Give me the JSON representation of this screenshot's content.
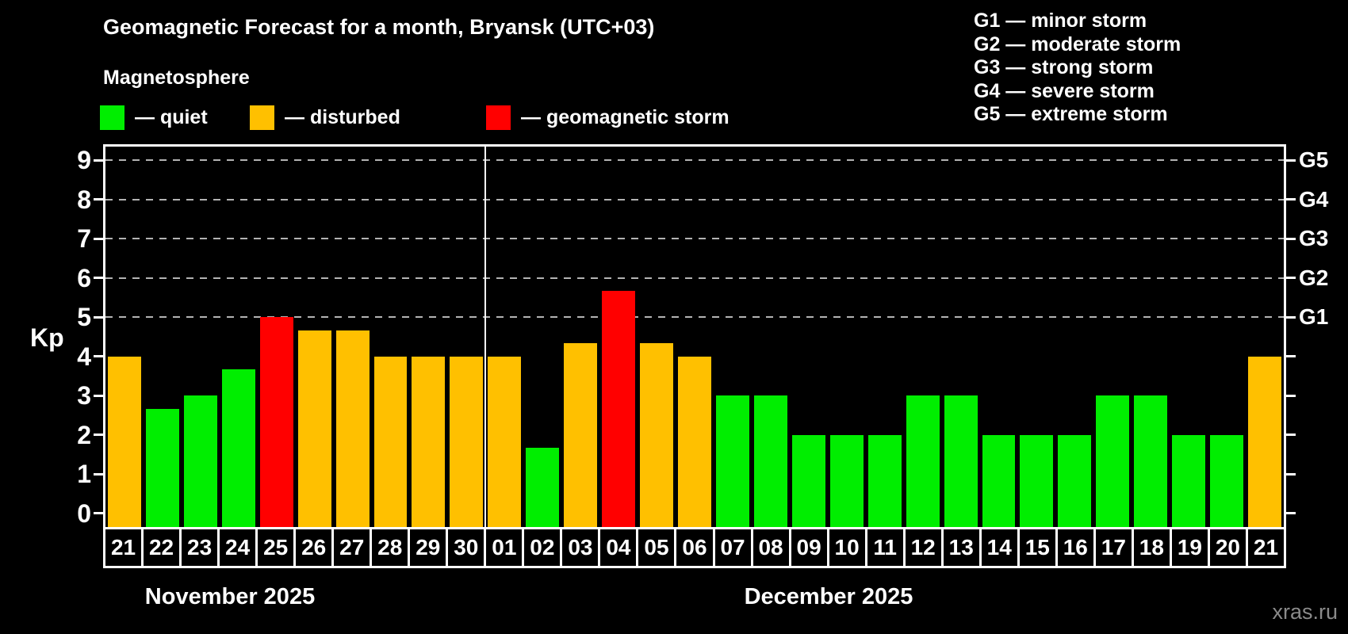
{
  "header": {
    "title": "Geomagnetic Forecast for a month, Bryansk (UTC+03)",
    "subtitle": "Magnetosphere"
  },
  "legend": {
    "items": [
      {
        "status": "quiet",
        "color": "#00ee00",
        "label": "— quiet"
      },
      {
        "status": "disturbed",
        "color": "#ffc000",
        "label": "— disturbed"
      },
      {
        "status": "storm",
        "color": "#ff0000",
        "label": "— geomagnetic storm"
      }
    ]
  },
  "g_legend": {
    "lines": [
      "G1 — minor storm",
      "G2 — moderate storm",
      "G3 — strong storm",
      "G4 — severe storm",
      "G5 — extreme storm"
    ]
  },
  "watermark": "xras.ru",
  "chart_data": {
    "type": "bar",
    "title": "Geomagnetic Forecast for a month, Bryansk (UTC+03)",
    "subtitle": "Magnetosphere",
    "ylabel": "Kp",
    "ylim": [
      -0.35,
      9.35
    ],
    "yticks": [
      0,
      1,
      2,
      3,
      4,
      5,
      6,
      7,
      8,
      9
    ],
    "gridlines_kp": [
      5,
      6,
      7,
      8,
      9
    ],
    "grid": "dashed horizontal lines at Kp 5-9 only",
    "right_axis": [
      {
        "kp": 5,
        "label": "G1"
      },
      {
        "kp": 6,
        "label": "G2"
      },
      {
        "kp": 7,
        "label": "G3"
      },
      {
        "kp": 8,
        "label": "G4"
      },
      {
        "kp": 9,
        "label": "G5"
      }
    ],
    "status_colors": {
      "quiet": "#00ee00",
      "disturbed": "#ffc000",
      "storm": "#ff0000"
    },
    "months": [
      {
        "label": "November 2025",
        "day_count": 10
      },
      {
        "label": "December 2025",
        "day_count": 21
      }
    ],
    "bars": [
      {
        "month": "Nov",
        "date": "21",
        "kp": 4.0,
        "status": "disturbed"
      },
      {
        "month": "Nov",
        "date": "22",
        "kp": 2.67,
        "status": "quiet"
      },
      {
        "month": "Nov",
        "date": "23",
        "kp": 3.0,
        "status": "quiet"
      },
      {
        "month": "Nov",
        "date": "24",
        "kp": 3.67,
        "status": "quiet"
      },
      {
        "month": "Nov",
        "date": "25",
        "kp": 5.0,
        "status": "storm"
      },
      {
        "month": "Nov",
        "date": "26",
        "kp": 4.67,
        "status": "disturbed"
      },
      {
        "month": "Nov",
        "date": "27",
        "kp": 4.67,
        "status": "disturbed"
      },
      {
        "month": "Nov",
        "date": "28",
        "kp": 4.0,
        "status": "disturbed"
      },
      {
        "month": "Nov",
        "date": "29",
        "kp": 4.0,
        "status": "disturbed"
      },
      {
        "month": "Nov",
        "date": "30",
        "kp": 4.0,
        "status": "disturbed"
      },
      {
        "month": "Dec",
        "date": "01",
        "kp": 4.0,
        "status": "disturbed"
      },
      {
        "month": "Dec",
        "date": "02",
        "kp": 1.67,
        "status": "quiet"
      },
      {
        "month": "Dec",
        "date": "03",
        "kp": 4.33,
        "status": "disturbed"
      },
      {
        "month": "Dec",
        "date": "04",
        "kp": 5.67,
        "status": "storm"
      },
      {
        "month": "Dec",
        "date": "05",
        "kp": 4.33,
        "status": "disturbed"
      },
      {
        "month": "Dec",
        "date": "06",
        "kp": 4.0,
        "status": "disturbed"
      },
      {
        "month": "Dec",
        "date": "07",
        "kp": 3.0,
        "status": "quiet"
      },
      {
        "month": "Dec",
        "date": "08",
        "kp": 3.0,
        "status": "quiet"
      },
      {
        "month": "Dec",
        "date": "09",
        "kp": 2.0,
        "status": "quiet"
      },
      {
        "month": "Dec",
        "date": "10",
        "kp": 2.0,
        "status": "quiet"
      },
      {
        "month": "Dec",
        "date": "11",
        "kp": 2.0,
        "status": "quiet"
      },
      {
        "month": "Dec",
        "date": "12",
        "kp": 3.0,
        "status": "quiet"
      },
      {
        "month": "Dec",
        "date": "13",
        "kp": 3.0,
        "status": "quiet"
      },
      {
        "month": "Dec",
        "date": "14",
        "kp": 2.0,
        "status": "quiet"
      },
      {
        "month": "Dec",
        "date": "15",
        "kp": 2.0,
        "status": "quiet"
      },
      {
        "month": "Dec",
        "date": "16",
        "kp": 2.0,
        "status": "quiet"
      },
      {
        "month": "Dec",
        "date": "17",
        "kp": 3.0,
        "status": "quiet"
      },
      {
        "month": "Dec",
        "date": "18",
        "kp": 3.0,
        "status": "quiet"
      },
      {
        "month": "Dec",
        "date": "19",
        "kp": 2.0,
        "status": "quiet"
      },
      {
        "month": "Dec",
        "date": "20",
        "kp": 2.0,
        "status": "quiet"
      },
      {
        "month": "Dec",
        "date": "21",
        "kp": 4.0,
        "status": "disturbed"
      }
    ]
  }
}
